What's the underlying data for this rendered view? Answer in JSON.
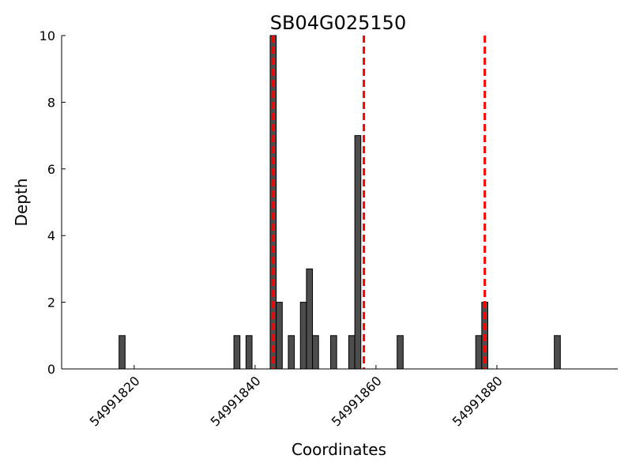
{
  "chart_data": {
    "type": "bar",
    "title": "SB04G025150",
    "xlabel": "Coordinates",
    "ylabel": "Depth",
    "xlim": [
      54991808,
      54991900
    ],
    "ylim": [
      0,
      10
    ],
    "xticks": [
      54991820,
      54991840,
      54991860,
      54991880
    ],
    "yticks": [
      0,
      2,
      4,
      6,
      8,
      10
    ],
    "x": [
      54991818,
      54991837,
      54991839,
      54991843,
      54991844,
      54991846,
      54991848,
      54991849,
      54991850,
      54991853,
      54991856,
      54991857,
      54991864,
      54991877,
      54991878,
      54991890
    ],
    "values": [
      1,
      1,
      1,
      10,
      2,
      1,
      2,
      3,
      1,
      1,
      1,
      7,
      1,
      1,
      2,
      1
    ],
    "reference_lines_x": [
      54991843,
      54991858,
      54991878
    ],
    "grid": false,
    "colors": {
      "bar": "#4d4d4d",
      "reference_line": "#ff0000"
    }
  }
}
